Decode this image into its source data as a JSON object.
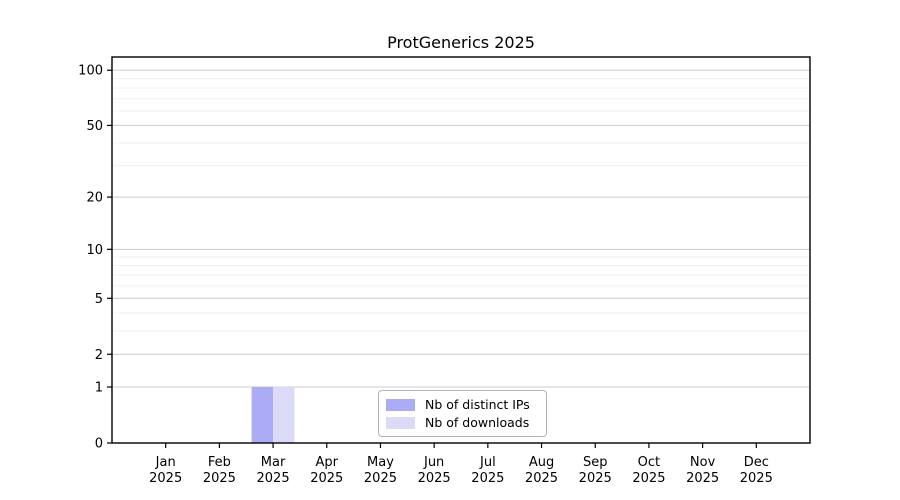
{
  "chart_data": {
    "type": "bar",
    "title": "ProtGenerics 2025",
    "categories": [
      "Jan",
      "Feb",
      "Mar",
      "Apr",
      "May",
      "Jun",
      "Jul",
      "Aug",
      "Sep",
      "Oct",
      "Nov",
      "Dec"
    ],
    "x_tick_second_line": "2025",
    "series": [
      {
        "name": "Nb of distinct IPs",
        "color": "#acacf6",
        "values": [
          0,
          0,
          1,
          0,
          0,
          0,
          0,
          0,
          0,
          0,
          0,
          0
        ]
      },
      {
        "name": "Nb of downloads",
        "color": "#dbdbf8",
        "values": [
          0,
          0,
          1,
          0,
          0,
          0,
          0,
          0,
          0,
          0,
          0,
          0
        ]
      }
    ],
    "yscale": "log1p",
    "ylim": [
      0,
      118
    ],
    "y_major_ticks": [
      0,
      1,
      2,
      5,
      10,
      20,
      50,
      100
    ],
    "y_minor_gridlines": [
      3,
      4,
      6,
      7,
      8,
      9,
      30,
      40,
      60,
      70,
      80,
      90
    ],
    "grid": "horizontal",
    "legend_position": "lower center",
    "colors": {
      "axis": "#000000",
      "grid_major": "#cccccc",
      "grid_minor": "#f0f0f0",
      "legend_border": "#b3b3b3",
      "background": "#ffffff"
    }
  }
}
